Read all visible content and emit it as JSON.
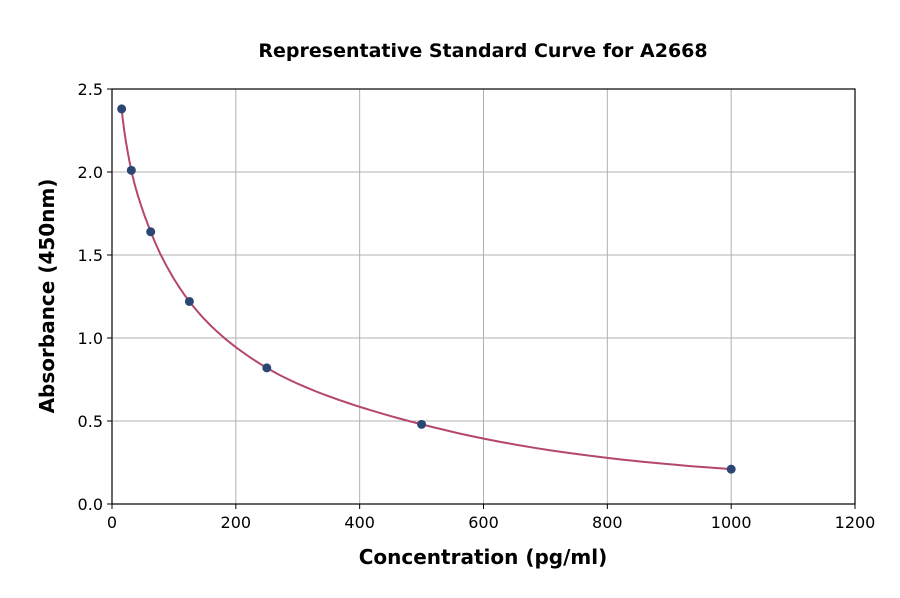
{
  "chart_data": {
    "type": "line",
    "title": "Representative Standard Curve for A2668",
    "xlabel": "Concentration (pg/ml)",
    "ylabel": "Absorbance (450nm)",
    "xlim": [
      0,
      1200
    ],
    "ylim": [
      0,
      2.5
    ],
    "xticks": [
      0,
      200,
      400,
      600,
      800,
      1000,
      1200
    ],
    "yticks": [
      0.0,
      0.5,
      1.0,
      1.5,
      2.0,
      2.5
    ],
    "xtick_labels": [
      "0",
      "200",
      "400",
      "600",
      "800",
      "1000",
      "1200"
    ],
    "ytick_labels": [
      "0.0",
      "0.5",
      "1.0",
      "1.5",
      "2.0",
      "2.5"
    ],
    "grid": true,
    "points": {
      "x": [
        15.6,
        31.25,
        62.5,
        125,
        250,
        500,
        1000
      ],
      "y": [
        2.38,
        2.01,
        1.64,
        1.22,
        0.82,
        0.48,
        0.21
      ]
    },
    "colors": {
      "points": "#2c4673",
      "curve": "#b5466e",
      "grid": "#b0b0b0"
    }
  }
}
